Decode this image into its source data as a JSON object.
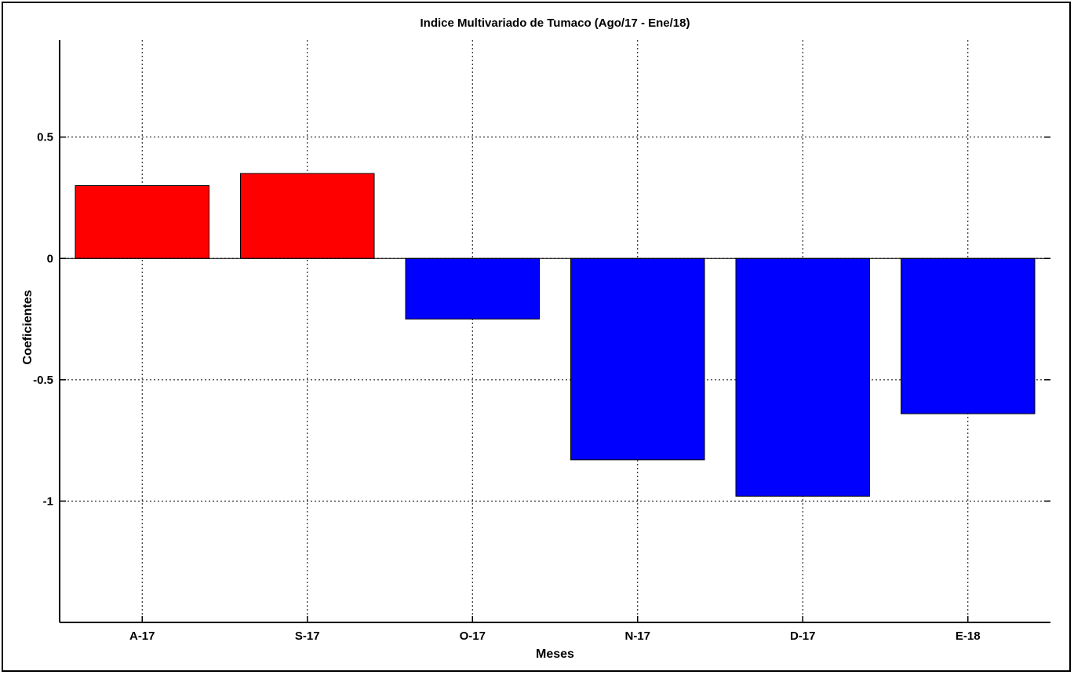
{
  "chart_data": {
    "type": "bar",
    "title": "Indice Multivariado de Tumaco (Ago/17  - Ene/18)",
    "xlabel": "Meses",
    "ylabel": "Coeficientes",
    "categories": [
      "A-17",
      "S-17",
      "O-17",
      "N-17",
      "D-17",
      "E-18"
    ],
    "values": [
      0.3,
      0.35,
      -0.25,
      -0.83,
      -0.98,
      -0.64
    ],
    "ylim": [
      -1.5,
      0.9
    ],
    "yticks": [
      0.5,
      0,
      -0.5,
      -1
    ],
    "ytick_labels": [
      "0.5",
      "0",
      "-0.5",
      "-1"
    ],
    "grid": true,
    "colors": {
      "positive": "#ff0000",
      "negative": "#0000ff",
      "edge": "#000000"
    }
  }
}
